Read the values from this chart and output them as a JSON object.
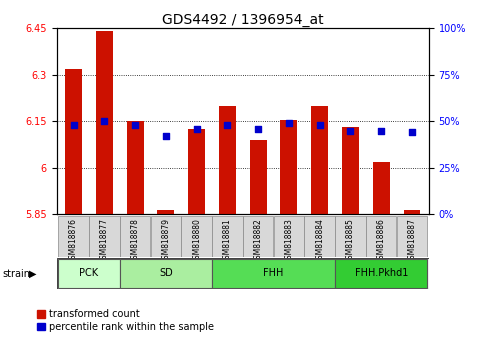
{
  "title": "GDS4492 / 1396954_at",
  "samples": [
    "GSM818876",
    "GSM818877",
    "GSM818878",
    "GSM818879",
    "GSM818880",
    "GSM818881",
    "GSM818882",
    "GSM818883",
    "GSM818884",
    "GSM818885",
    "GSM818886",
    "GSM818887"
  ],
  "transformed_count": [
    6.32,
    6.44,
    6.15,
    5.862,
    6.125,
    6.2,
    6.09,
    6.155,
    6.2,
    6.13,
    6.02,
    5.862
  ],
  "percentile_rank": [
    48,
    50,
    48,
    42,
    46,
    48,
    46,
    49,
    48,
    45,
    45,
    44
  ],
  "ymin": 5.85,
  "ymax": 6.45,
  "yticks": [
    5.85,
    6.0,
    6.15,
    6.3,
    6.45
  ],
  "ytick_labels": [
    "5.85",
    "6",
    "6.15",
    "6.3",
    "6.45"
  ],
  "right_yticks": [
    0,
    25,
    50,
    75,
    100
  ],
  "right_ytick_labels": [
    "0%",
    "25%",
    "50%",
    "75%",
    "100%"
  ],
  "bar_color": "#cc1100",
  "dot_color": "#0000cc",
  "bg_color": "#ffffff",
  "strain_groups": [
    {
      "label": "PCK",
      "start": 0,
      "end": 2,
      "color": "#ccffcc"
    },
    {
      "label": "SD",
      "start": 2,
      "end": 5,
      "color": "#aaeea0"
    },
    {
      "label": "FHH",
      "start": 5,
      "end": 9,
      "color": "#55dd55"
    },
    {
      "label": "FHH.Pkhd1",
      "start": 9,
      "end": 12,
      "color": "#33cc33"
    }
  ],
  "title_fontsize": 10,
  "bar_width": 0.55,
  "dot_size": 18
}
